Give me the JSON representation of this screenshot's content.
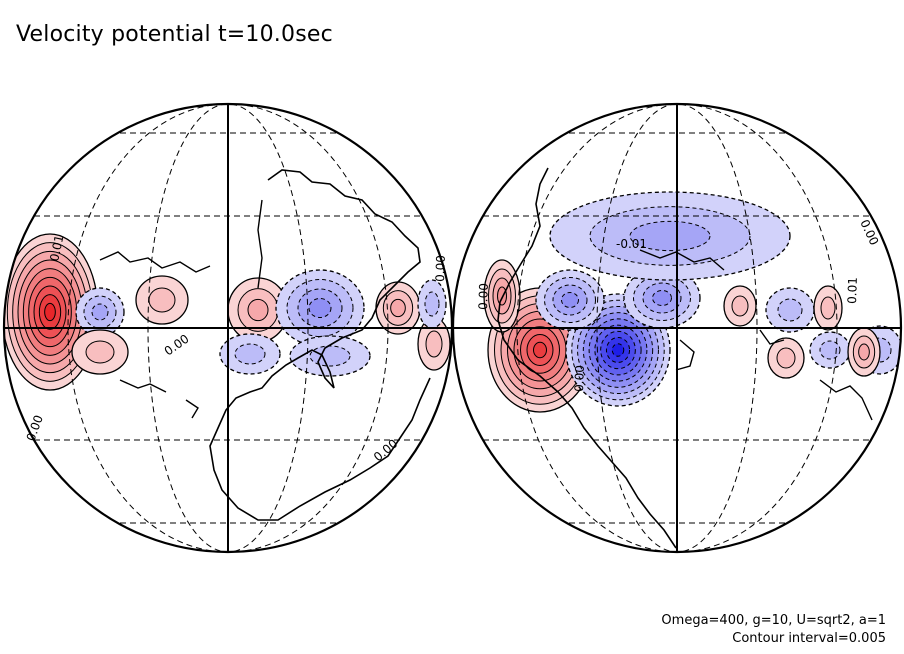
{
  "title": "Velocity potential t=10.0sec",
  "parameters": "Omega=400, g=10, U=sqrt2, a=1",
  "contour_interval": "Contour interval=0.005",
  "contour_labels": {
    "left": [
      "0.01",
      "0.00",
      "0.00",
      "0.00"
    ],
    "right": [
      "-0.01",
      "0.00",
      "0.00",
      "0.00",
      "0.00",
      "0.01"
    ]
  },
  "colors": {
    "positive": "#e8262a",
    "negative": "#1e1ee8",
    "line": "#000000"
  },
  "hemispheres": [
    {
      "name": "left",
      "features": [
        {
          "sign": "pos",
          "level": 9
        },
        {
          "sign": "neg",
          "level": 3
        },
        {
          "sign": "pos",
          "level": 2
        },
        {
          "sign": "pos",
          "level": 3
        },
        {
          "sign": "neg",
          "level": 4
        },
        {
          "sign": "pos",
          "level": 3
        },
        {
          "sign": "neg",
          "level": 2
        },
        {
          "sign": "pos",
          "level": 2
        },
        {
          "sign": "neg",
          "level": 2
        },
        {
          "sign": "pos",
          "level": 2
        },
        {
          "sign": "neg",
          "level": 2
        }
      ]
    },
    {
      "name": "right",
      "features": [
        {
          "sign": "pos",
          "level": 8
        },
        {
          "sign": "neg",
          "level": 9
        },
        {
          "sign": "neg",
          "level": 4
        },
        {
          "sign": "neg",
          "level": 4
        },
        {
          "sign": "neg",
          "level": 3
        },
        {
          "sign": "pos",
          "level": 2
        },
        {
          "sign": "neg",
          "level": 2
        },
        {
          "sign": "pos",
          "level": 2
        },
        {
          "sign": "neg",
          "level": 2
        },
        {
          "sign": "pos",
          "level": 2
        },
        {
          "sign": "neg",
          "level": 2
        },
        {
          "sign": "pos",
          "level": 3
        },
        {
          "sign": "pos",
          "level": 4
        }
      ]
    }
  ]
}
